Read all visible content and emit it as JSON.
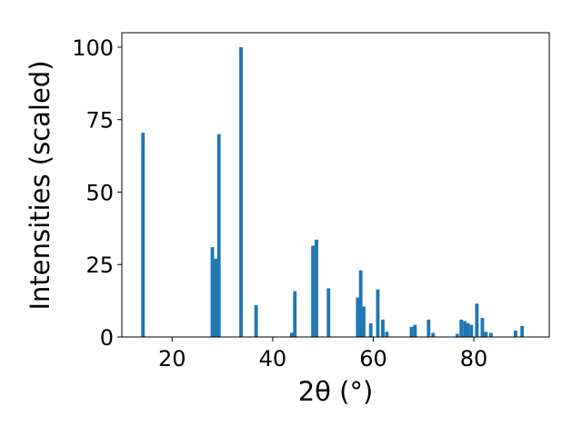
{
  "chart_data": {
    "type": "bar",
    "title": "",
    "xlabel": "2θ (°)",
    "ylabel": "Intensities (scaled)",
    "xlim": [
      10,
      95
    ],
    "ylim": [
      0,
      105
    ],
    "xticks": [
      20,
      40,
      60,
      80
    ],
    "yticks": [
      0,
      25,
      50,
      75,
      100
    ],
    "grid": false,
    "legend": "none",
    "bar_color": "#1f77b4",
    "bar_width": 0.7,
    "x": [
      14.2,
      28.0,
      28.7,
      29.3,
      33.7,
      36.7,
      43.8,
      44.4,
      48.0,
      48.7,
      51.1,
      56.9,
      57.5,
      58.1,
      59.5,
      60.9,
      61.9,
      62.7,
      67.6,
      68.3,
      71.0,
      71.9,
      76.7,
      77.5,
      78.2,
      78.8,
      79.5,
      80.6,
      81.7,
      82.4,
      83.4,
      88.3,
      89.6
    ],
    "values": [
      70.5,
      31,
      27,
      70,
      100,
      11,
      1.5,
      15.8,
      31.5,
      33.6,
      16.8,
      13.6,
      23,
      10.5,
      4.7,
      16.4,
      6,
      1.8,
      3.5,
      4.2,
      6.0,
      1.4,
      1.1,
      6,
      5.5,
      4.8,
      4.2,
      11.5,
      6.6,
      1.8,
      1.4,
      2.2,
      3.8
    ]
  }
}
